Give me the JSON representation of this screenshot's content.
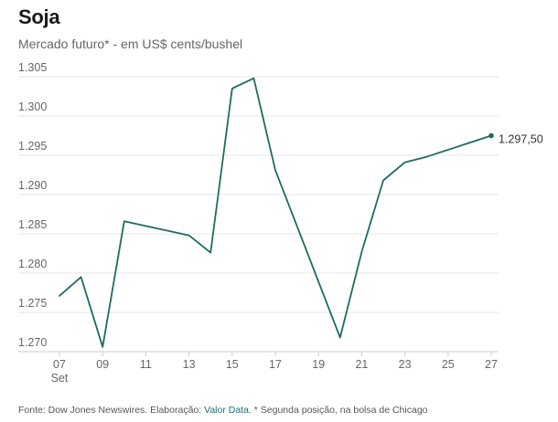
{
  "title": "Soja",
  "subtitle": "Mercado futuro* - em US$ cents/bushel",
  "footer": {
    "prefix": "Fonte: Dow Jones Newswires. Elaboração: ",
    "brand": "Valor Data",
    "suffix": ". * Segunda posição, na bolsa de Chicago"
  },
  "colors": {
    "line": "#1f6b63",
    "grid": "#e6e6e6",
    "tick_text": "#666666"
  },
  "chart_data": {
    "type": "line",
    "title": "Soja",
    "subtitle": "Mercado futuro* - em US$ cents/bushel",
    "xlabel": "",
    "ylabel": "",
    "ylim": [
      1.27,
      1.305
    ],
    "yticks": [
      {
        "value": 1.27,
        "label": "1.270"
      },
      {
        "value": 1.275,
        "label": "1.275"
      },
      {
        "value": 1.28,
        "label": "1.280"
      },
      {
        "value": 1.285,
        "label": "1.285"
      },
      {
        "value": 1.29,
        "label": "1.290"
      },
      {
        "value": 1.295,
        "label": "1.295"
      },
      {
        "value": 1.3,
        "label": "1.300"
      },
      {
        "value": 1.305,
        "label": "1.305"
      }
    ],
    "xlim": [
      7,
      27
    ],
    "xticks": [
      {
        "value": 7,
        "label": "07"
      },
      {
        "value": 9,
        "label": "09"
      },
      {
        "value": 11,
        "label": "11"
      },
      {
        "value": 13,
        "label": "13"
      },
      {
        "value": 15,
        "label": "15"
      },
      {
        "value": 17,
        "label": "17"
      },
      {
        "value": 19,
        "label": "19"
      },
      {
        "value": 21,
        "label": "21"
      },
      {
        "value": 23,
        "label": "23"
      },
      {
        "value": 25,
        "label": "25"
      },
      {
        "value": 27,
        "label": "27"
      }
    ],
    "month_label": "Set",
    "grid": true,
    "series": [
      {
        "name": "Soja",
        "points": [
          {
            "x": 7,
            "y": 1.2771
          },
          {
            "x": 8,
            "y": 1.2795
          },
          {
            "x": 9,
            "y": 1.2706
          },
          {
            "x": 10,
            "y": 1.2866
          },
          {
            "x": 13,
            "y": 1.2848
          },
          {
            "x": 14,
            "y": 1.2826
          },
          {
            "x": 15,
            "y": 1.3035
          },
          {
            "x": 16,
            "y": 1.3048
          },
          {
            "x": 17,
            "y": 1.2931
          },
          {
            "x": 20,
            "y": 1.2718
          },
          {
            "x": 21,
            "y": 1.2827
          },
          {
            "x": 22,
            "y": 1.2918
          },
          {
            "x": 23,
            "y": 1.2941
          },
          {
            "x": 24,
            "y": 1.2948
          },
          {
            "x": 27,
            "y": 1.2975
          }
        ]
      }
    ],
    "last_value_label": "1.297,50"
  }
}
